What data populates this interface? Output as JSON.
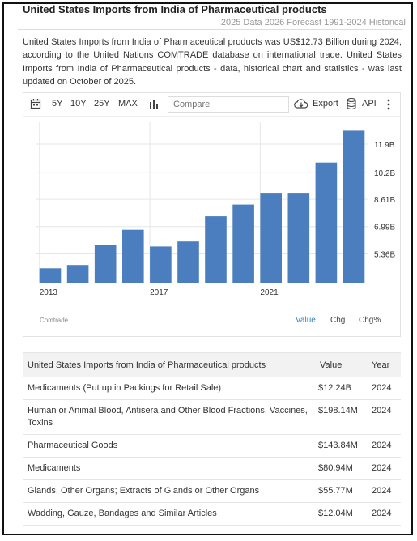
{
  "header": {
    "title": "United States Imports from India of Pharmaceutical products",
    "subtitle": "2025 Data 2026 Forecast 1991-2024 Historical"
  },
  "description": "United States Imports from India of Pharmaceutical products was US$12.73 Billion during 2024, according to the United Nations COMTRADE database on international trade. United States Imports from India of Pharmaceutical products - data, historical chart and statistics - was last updated on October of 2025.",
  "toolbar": {
    "range_buttons": [
      "5Y",
      "10Y",
      "25Y",
      "MAX"
    ],
    "compare_placeholder": "Compare +",
    "export_label": "Export",
    "api_label": "API",
    "icons": [
      "calendar-icon",
      "bar-chart-icon",
      "cloud-download-icon",
      "database-icon",
      "more-vertical-icon"
    ]
  },
  "chart_data": {
    "type": "bar",
    "categories": [
      "2013",
      "2014",
      "2015",
      "2016",
      "2017",
      "2018",
      "2019",
      "2020",
      "2021",
      "2022",
      "2023",
      "2024"
    ],
    "values": [
      4.5,
      4.7,
      5.9,
      6.8,
      5.8,
      6.1,
      7.6,
      8.3,
      9.0,
      9.0,
      10.8,
      12.7
    ],
    "x_tick_labels": [
      "2013",
      "2017",
      "2021"
    ],
    "y_tick_labels": [
      "5.36B",
      "6.99B",
      "8.61B",
      "10.2B",
      "11.9B"
    ],
    "y_tick_values": [
      5.36,
      6.99,
      8.61,
      10.2,
      11.9
    ],
    "ylim": [
      3.6,
      13.2
    ],
    "grid": true,
    "bar_color": "#4a7ebf",
    "source": "Comtrade"
  },
  "chart_modes": {
    "items": [
      "Value",
      "Chg",
      "Chg%"
    ],
    "active": "Value",
    "active_color": "#2e86c1"
  },
  "table": {
    "headers": [
      "United States Imports from India of Pharmaceutical products",
      "Value",
      "Year"
    ],
    "rows": [
      {
        "name": "Medicaments (Put up in Packings for Retail Sale)",
        "value": "$12.24B",
        "year": "2024"
      },
      {
        "name": "Human or Animal Blood, Antisera and Other Blood Fractions, Vaccines, Toxins",
        "value": "$198.14M",
        "year": "2024"
      },
      {
        "name": "Pharmaceutical Goods",
        "value": "$143.84M",
        "year": "2024"
      },
      {
        "name": "Medicaments",
        "value": "$80.94M",
        "year": "2024"
      },
      {
        "name": "Glands, Other Organs; Extracts of Glands or Other Organs",
        "value": "$55.77M",
        "year": "2024"
      },
      {
        "name": "Wadding, Gauze, Bandages and Similar Articles",
        "value": "$12.04M",
        "year": "2024"
      }
    ]
  }
}
